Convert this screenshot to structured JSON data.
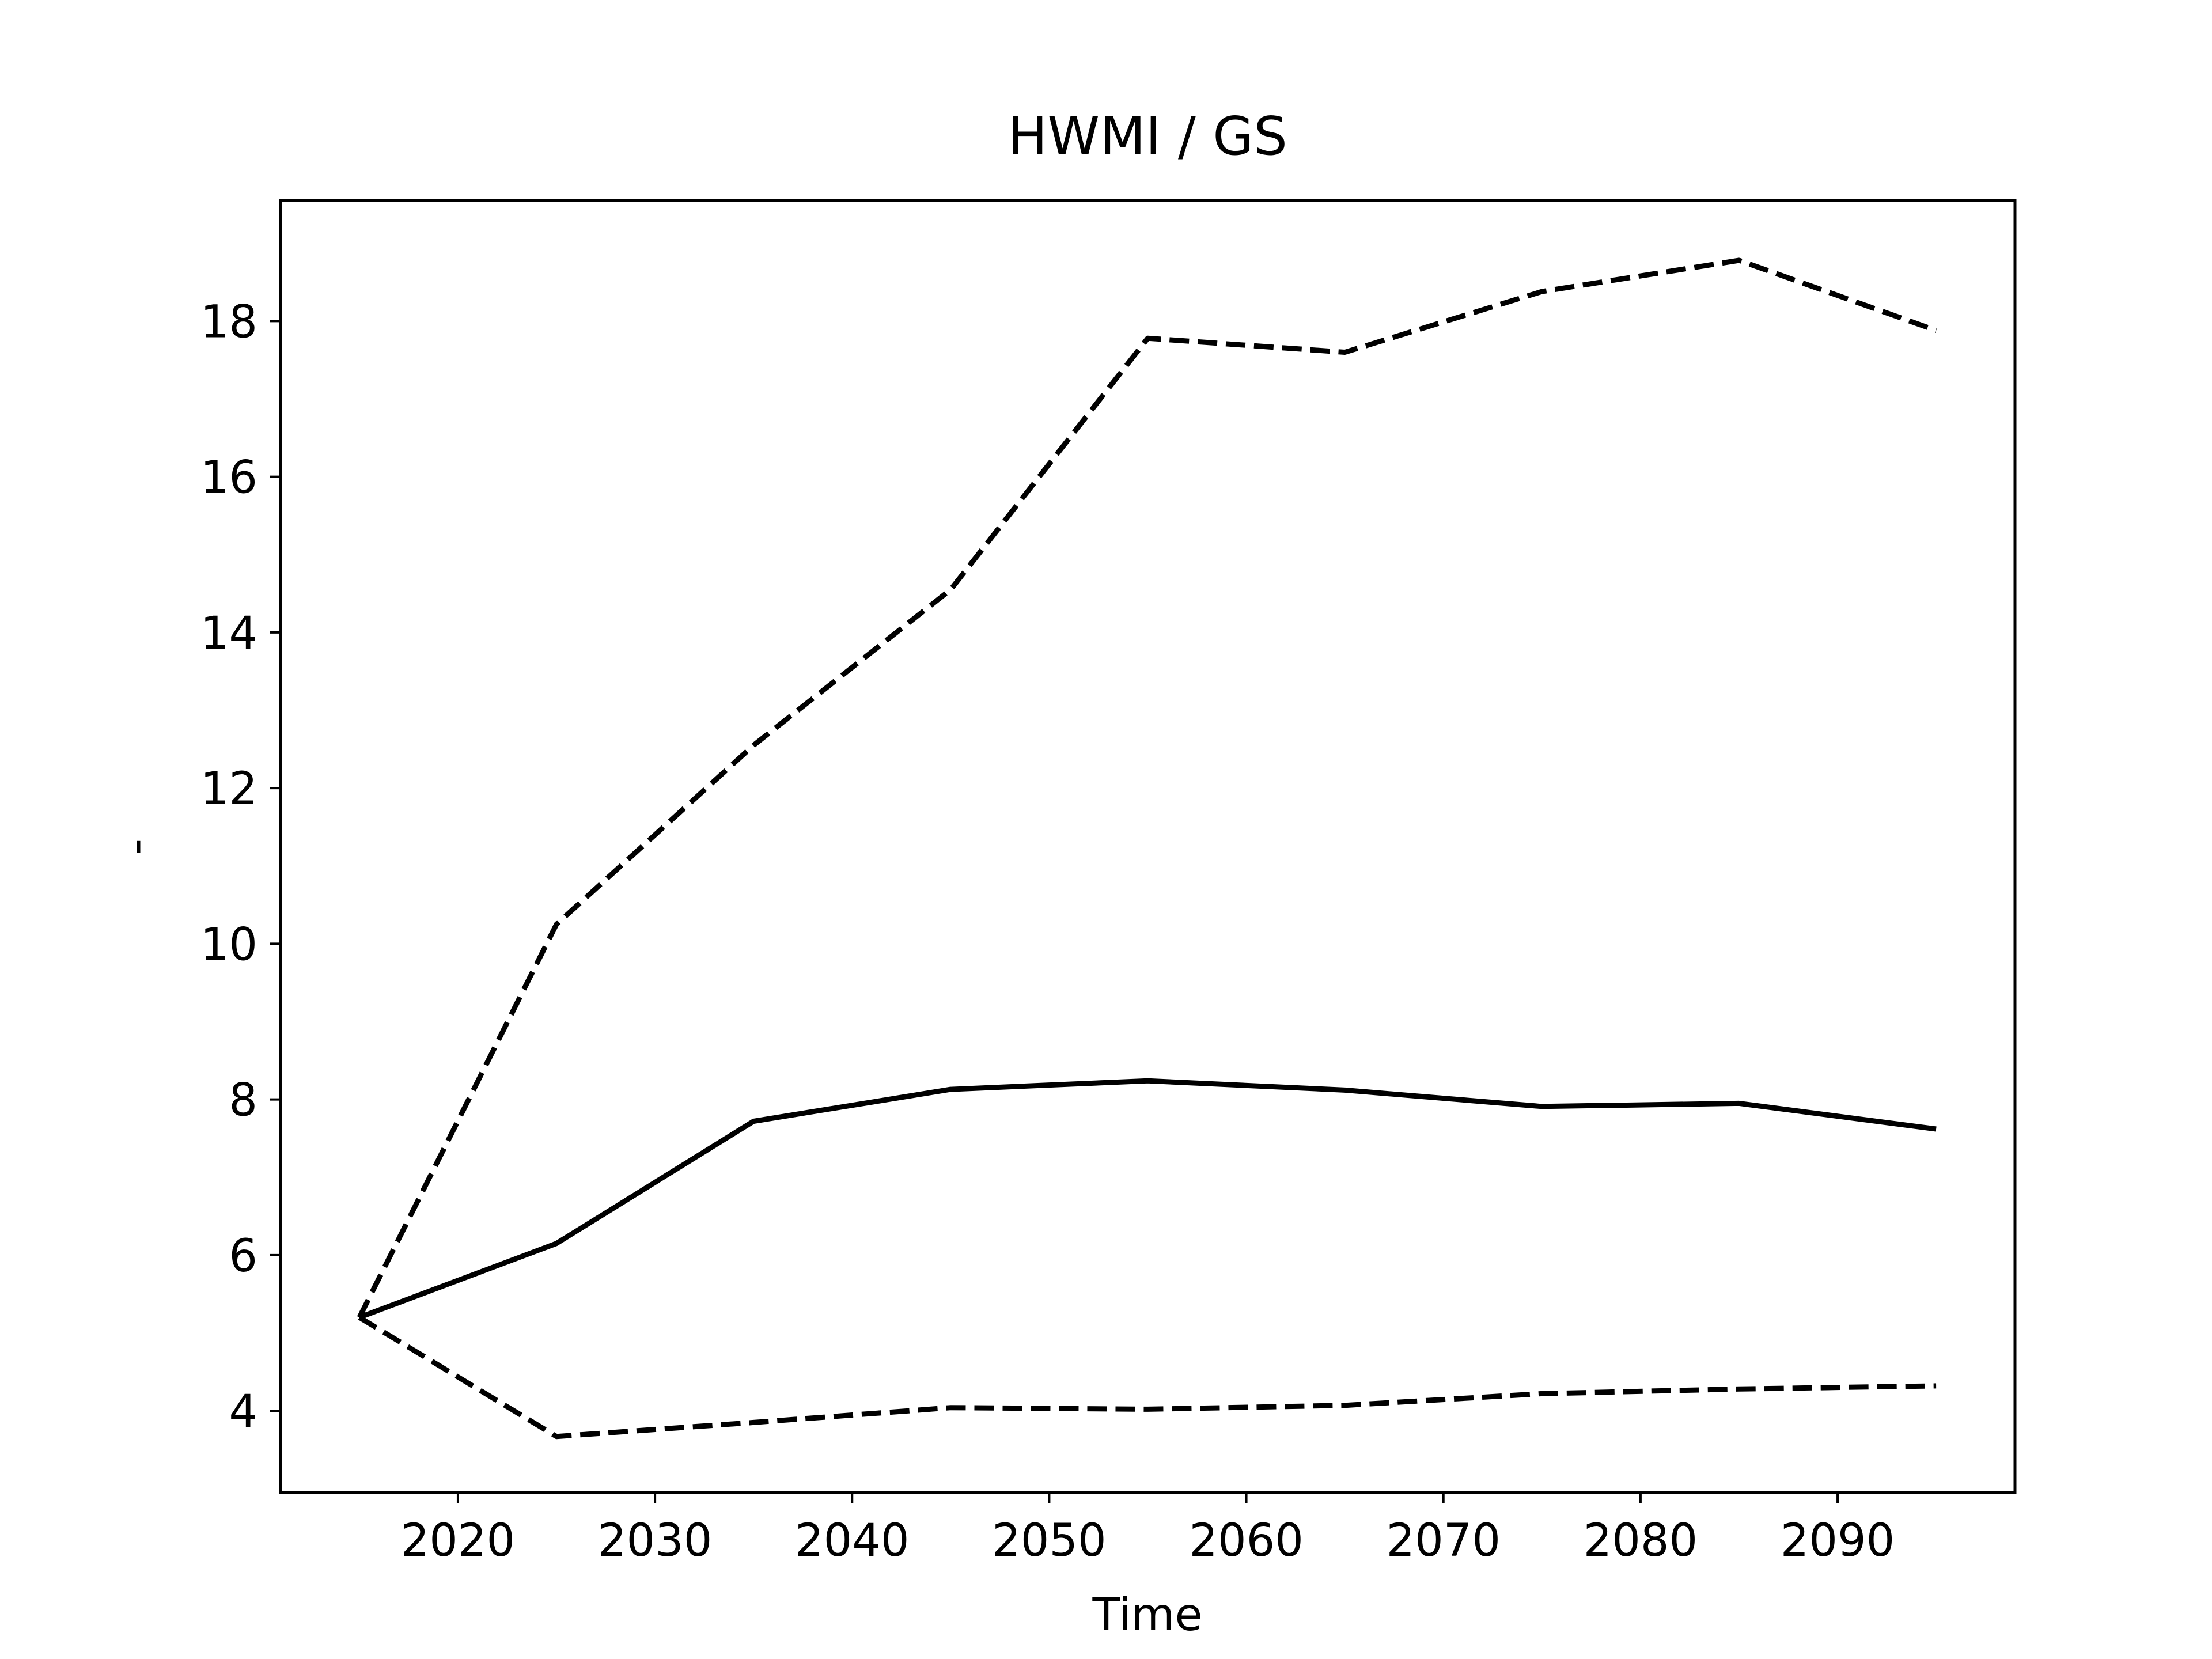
{
  "chart_data": {
    "type": "line",
    "title": "HWMI / GS",
    "xlabel": "Time",
    "ylabel": "-",
    "xlim": [
      2011,
      2099
    ],
    "ylim": [
      2.95,
      19.55
    ],
    "xticks": [
      2020,
      2030,
      2040,
      2050,
      2060,
      2070,
      2080,
      2090
    ],
    "yticks": [
      4,
      6,
      8,
      10,
      12,
      14,
      16,
      18
    ],
    "x": [
      2015,
      2025,
      2035,
      2045,
      2055,
      2065,
      2075,
      2085,
      2095
    ],
    "series": [
      {
        "line_style": "solid",
        "color": "#000000",
        "values": [
          5.2,
          6.15,
          7.72,
          8.13,
          8.24,
          8.12,
          7.91,
          7.95,
          7.62
        ]
      },
      {
        "line_style": "dashed",
        "color": "#000000",
        "values": [
          5.2,
          10.25,
          12.55,
          14.55,
          17.78,
          17.6,
          18.38,
          18.78,
          17.88
        ]
      },
      {
        "line_style": "dashed",
        "color": "#000000",
        "values": [
          5.2,
          3.67,
          3.85,
          4.04,
          4.02,
          4.07,
          4.22,
          4.28,
          4.32
        ]
      }
    ],
    "grid": false,
    "legend": false
  }
}
